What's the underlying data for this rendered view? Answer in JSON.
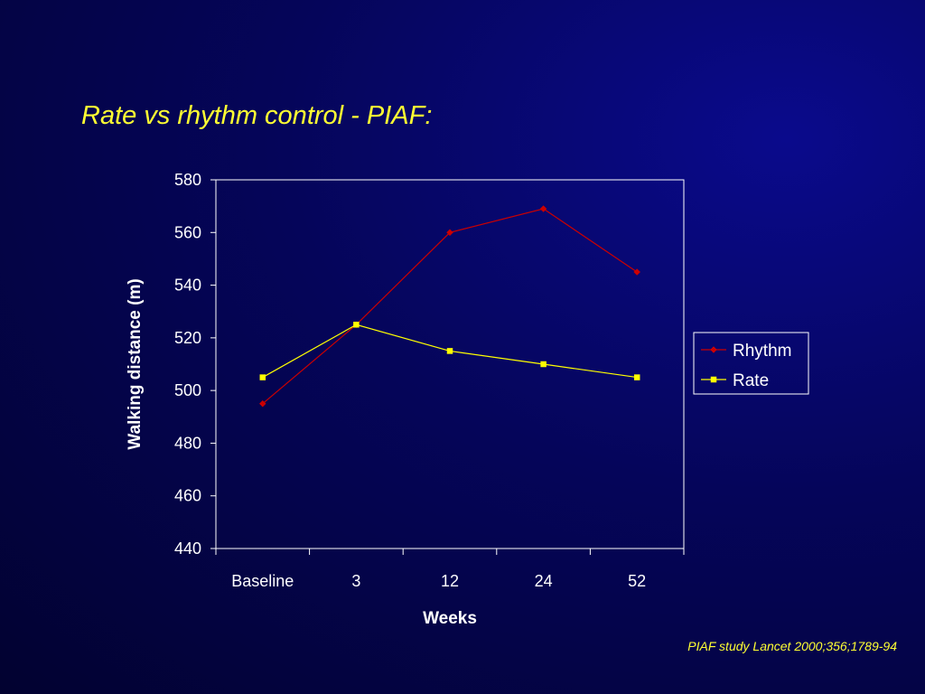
{
  "slide": {
    "title": "Rate vs rhythm control - PIAF:",
    "citation": "PIAF study Lancet 2000;356;1789-94"
  },
  "colors": {
    "background": "#05055a",
    "title": "#ffff33",
    "rhythm": "#cc0000",
    "rate": "#ffff00",
    "axis": "#ffffff"
  },
  "chart_data": {
    "type": "line",
    "categories": [
      "Baseline",
      "3",
      "12",
      "24",
      "52"
    ],
    "series": [
      {
        "name": "Rhythm",
        "values": [
          495,
          525,
          560,
          569,
          545
        ],
        "color": "#cc0000",
        "marker": "diamond"
      },
      {
        "name": "Rate",
        "values": [
          505,
          525,
          515,
          510,
          505
        ],
        "color": "#ffff00",
        "marker": "square"
      }
    ],
    "title": "",
    "xlabel": "Weeks",
    "ylabel": "Walking distance (m)",
    "ylim": [
      440,
      580
    ],
    "yticks": [
      440,
      460,
      480,
      500,
      520,
      540,
      560,
      580
    ],
    "grid": false,
    "legend": "right"
  }
}
